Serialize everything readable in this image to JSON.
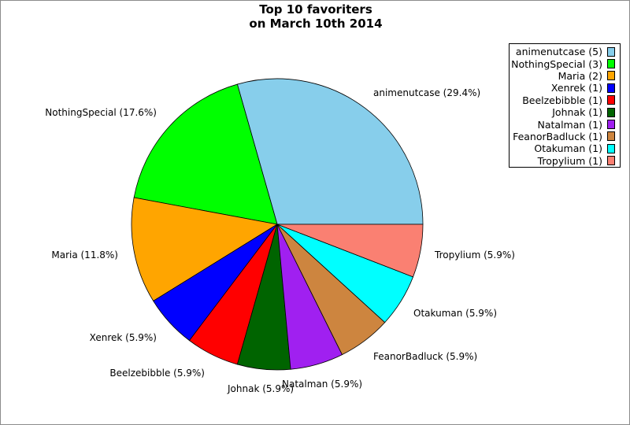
{
  "chart_data": {
    "type": "pie",
    "title": [
      "Top 10 favoriters",
      "on March 10th 2014"
    ],
    "slices": [
      {
        "label": "animenutcase",
        "count": 5,
        "percent": "29.4%",
        "color": "#87ceeb"
      },
      {
        "label": "NothingSpecial",
        "count": 3,
        "percent": "17.6%",
        "color": "#00ff00"
      },
      {
        "label": "Maria",
        "count": 2,
        "percent": "11.8%",
        "color": "#ffa500"
      },
      {
        "label": "Xenrek",
        "count": 1,
        "percent": "5.9%",
        "color": "#0000ff"
      },
      {
        "label": "Beelzebibble",
        "count": 1,
        "percent": "5.9%",
        "color": "#ff0000"
      },
      {
        "label": "Johnak",
        "count": 1,
        "percent": "5.9%",
        "color": "#006400"
      },
      {
        "label": "Natalman",
        "count": 1,
        "percent": "5.9%",
        "color": "#a020f0"
      },
      {
        "label": "FeanorBadluck",
        "count": 1,
        "percent": "5.9%",
        "color": "#cd853f"
      },
      {
        "label": "Otakuman",
        "count": 1,
        "percent": "5.9%",
        "color": "#00ffff"
      },
      {
        "label": "Tropylium",
        "count": 1,
        "percent": "5.9%",
        "color": "#fa8072"
      }
    ],
    "start_angle": "3 o'clock",
    "direction": "counterclockwise",
    "legend_position": "top-right",
    "legend_entries": [
      "animenutcase (5)",
      "NothingSpecial (3)",
      "Maria (2)",
      "Xenrek (1)",
      "Beelzebibble (1)",
      "Johnak (1)",
      "Natalman (1)",
      "FeanorBadluck (1)",
      "Otakuman (1)",
      "Tropylium (1)"
    ],
    "slice_labels": [
      "animenutcase (29.4%)",
      "NothingSpecial (17.6%)",
      "Maria (11.8%)",
      "Xenrek (5.9%)",
      "Beelzebibble (5.9%)",
      "Johnak (5.9%)",
      "Natalman (5.9%)",
      "FeanorBadluck (5.9%)",
      "Otakuman (5.9%)",
      "Tropylium (5.9%)"
    ]
  }
}
